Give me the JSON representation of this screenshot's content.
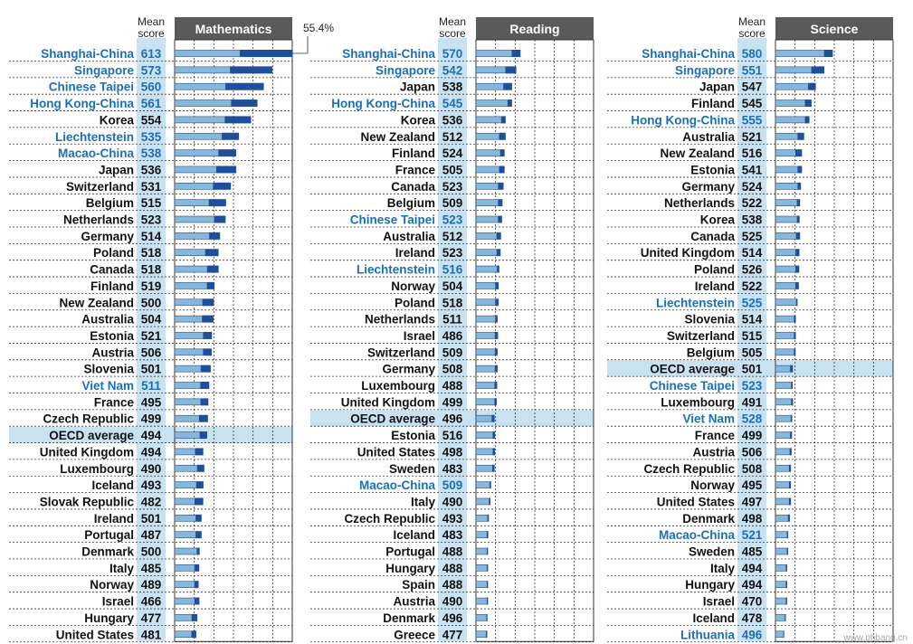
{
  "colors": {
    "partner_text": "#1a6fb5",
    "oecd_text": "#111111",
    "score_bg": "#c9e2f1",
    "oecd_band": "#c9e2f1",
    "header_bg": "#5a5a5a",
    "bar_light": "#86b7dc",
    "bar_dark": "#1f4f9a",
    "grid": "#333333"
  },
  "mean_score_label": [
    "Mean",
    "score"
  ],
  "watermark": "www.phbang.cn",
  "chart_data": [
    {
      "type": "bar",
      "title": "Mathematics",
      "annotation": "55.4%",
      "note": "Horizontal bars per country; light segment = share below reference level, dark segment = share at top levels. Values expressed as percentages.",
      "rows": [
        {
          "country": "Shanghai-China",
          "score": "613",
          "partner": true,
          "light": 30.8,
          "dark": 24.6
        },
        {
          "country": "Singapore",
          "score": "573",
          "partner": true,
          "light": 26.2,
          "dark": 19.8
        },
        {
          "country": "Chinese Taipei",
          "score": "560",
          "partner": true,
          "light": 24.0,
          "dark": 18.0
        },
        {
          "country": "Hong Kong-China",
          "score": "561",
          "partner": true,
          "light": 26.7,
          "dark": 12.3
        },
        {
          "country": "Korea",
          "score": "554",
          "partner": false,
          "light": 23.7,
          "dark": 12.3
        },
        {
          "country": "Liechtenstein",
          "score": "535",
          "partner": true,
          "light": 22.3,
          "dark": 8.0
        },
        {
          "country": "Macao-China",
          "score": "538",
          "partner": true,
          "light": 20.7,
          "dark": 8.3
        },
        {
          "country": "Japan",
          "score": "536",
          "partner": false,
          "light": 19.7,
          "dark": 9.3
        },
        {
          "country": "Switzerland",
          "score": "531",
          "partner": false,
          "light": 18.2,
          "dark": 8.3
        },
        {
          "country": "Belgium",
          "score": "515",
          "partner": false,
          "light": 16.2,
          "dark": 8.0
        },
        {
          "country": "Netherlands",
          "score": "523",
          "partner": false,
          "light": 18.7,
          "dark": 5.3
        },
        {
          "country": "Germany",
          "score": "514",
          "partner": false,
          "light": 16.4,
          "dark": 5.0
        },
        {
          "country": "Poland",
          "score": "518",
          "partner": false,
          "light": 14.5,
          "dark": 6.2
        },
        {
          "country": "Canada",
          "score": "518",
          "partner": false,
          "light": 15.4,
          "dark": 5.3
        },
        {
          "country": "Finland",
          "score": "519",
          "partner": false,
          "light": 15.3,
          "dark": 3.5
        },
        {
          "country": "New Zealand",
          "score": "500",
          "partner": false,
          "light": 13.2,
          "dark": 5.3
        },
        {
          "country": "Australia",
          "score": "504",
          "partner": false,
          "light": 13.0,
          "dark": 5.3
        },
        {
          "country": "Estonia",
          "score": "521",
          "partner": false,
          "light": 13.5,
          "dark": 4.1
        },
        {
          "country": "Austria",
          "score": "506",
          "partner": false,
          "light": 13.5,
          "dark": 4.0
        },
        {
          "country": "Slovenia",
          "score": "501",
          "partner": false,
          "light": 12.4,
          "dark": 4.6
        },
        {
          "country": "Viet Nam",
          "score": "511",
          "partner": true,
          "light": 12.2,
          "dark": 4.1
        },
        {
          "country": "France",
          "score": "495",
          "partner": false,
          "light": 12.3,
          "dark": 3.6
        },
        {
          "country": "Czech Republic",
          "score": "499",
          "partner": false,
          "light": 11.6,
          "dark": 4.1
        },
        {
          "country": "OECD average",
          "score": "494",
          "partner": false,
          "oecd": true,
          "light": 11.9,
          "dark": 3.4
        },
        {
          "country": "United Kingdom",
          "score": "494",
          "partner": false,
          "light": 9.7,
          "dark": 3.8
        },
        {
          "country": "Luxembourg",
          "score": "490",
          "partner": false,
          "light": 10.7,
          "dark": 3.3
        },
        {
          "country": "Iceland",
          "score": "493",
          "partner": false,
          "light": 10.3,
          "dark": 3.3
        },
        {
          "country": "Slovak Republic",
          "score": "482",
          "partner": false,
          "light": 9.5,
          "dark": 4.0
        },
        {
          "country": "Ireland",
          "score": "501",
          "partner": false,
          "light": 10.0,
          "dark": 2.7
        },
        {
          "country": "Portugal",
          "score": "487",
          "partner": false,
          "light": 10.0,
          "dark": 2.7
        },
        {
          "country": "Denmark",
          "score": "500",
          "partner": false,
          "light": 10.5,
          "dark": 1.3
        },
        {
          "country": "Italy",
          "score": "485",
          "partner": false,
          "light": 9.4,
          "dark": 2.2
        },
        {
          "country": "Norway",
          "score": "489",
          "partner": false,
          "light": 9.4,
          "dark": 1.9
        },
        {
          "country": "Israel",
          "score": "466",
          "partner": false,
          "light": 9.4,
          "dark": 2.3
        },
        {
          "country": "Hungary",
          "score": "477",
          "partner": false,
          "light": 8.1,
          "dark": 2.6
        },
        {
          "country": "United States",
          "score": "481",
          "partner": false,
          "light": 8.0,
          "dark": 2.2
        }
      ]
    },
    {
      "type": "bar",
      "title": "Reading",
      "rows": [
        {
          "country": "Shanghai-China",
          "score": "570",
          "partner": true,
          "light": 17.0,
          "dark": 4.0
        },
        {
          "country": "Singapore",
          "score": "542",
          "partner": true,
          "light": 14.0,
          "dark": 5.0
        },
        {
          "country": "Japan",
          "score": "538",
          "partner": false,
          "light": 13.0,
          "dark": 4.0
        },
        {
          "country": "Hong Kong-China",
          "score": "545",
          "partner": true,
          "light": 15.0,
          "dark": 2.0
        },
        {
          "country": "Korea",
          "score": "536",
          "partner": false,
          "light": 12.0,
          "dark": 2.0
        },
        {
          "country": "New Zealand",
          "score": "512",
          "partner": false,
          "light": 11.0,
          "dark": 3.0
        },
        {
          "country": "Finland",
          "score": "524",
          "partner": false,
          "light": 11.5,
          "dark": 2.0
        },
        {
          "country": "France",
          "score": "505",
          "partner": false,
          "light": 11.0,
          "dark": 2.5
        },
        {
          "country": "Canada",
          "score": "523",
          "partner": false,
          "light": 10.5,
          "dark": 2.5
        },
        {
          "country": "Belgium",
          "score": "509",
          "partner": false,
          "light": 10.5,
          "dark": 2.0
        },
        {
          "country": "Chinese Taipei",
          "score": "523",
          "partner": true,
          "light": 10.5,
          "dark": 1.8
        },
        {
          "country": "Australia",
          "score": "512",
          "partner": false,
          "light": 9.8,
          "dark": 2.0
        },
        {
          "country": "Ireland",
          "score": "523",
          "partner": false,
          "light": 9.8,
          "dark": 1.8
        },
        {
          "country": "Liechtenstein",
          "score": "516",
          "partner": true,
          "light": 10.0,
          "dark": 1.0
        },
        {
          "country": "Norway",
          "score": "504",
          "partner": false,
          "light": 9.2,
          "dark": 1.5
        },
        {
          "country": "Poland",
          "score": "518",
          "partner": false,
          "light": 9.2,
          "dark": 1.5
        },
        {
          "country": "Netherlands",
          "score": "511",
          "partner": false,
          "light": 9.2,
          "dark": 1.0
        },
        {
          "country": "Israel",
          "score": "486",
          "partner": false,
          "light": 9.0,
          "dark": 1.4
        },
        {
          "country": "Switzerland",
          "score": "509",
          "partner": false,
          "light": 9.0,
          "dark": 1.2
        },
        {
          "country": "Germany",
          "score": "508",
          "partner": false,
          "light": 9.0,
          "dark": 1.2
        },
        {
          "country": "Luxembourg",
          "score": "488",
          "partner": false,
          "light": 8.8,
          "dark": 1.2
        },
        {
          "country": "United Kingdom",
          "score": "499",
          "partner": false,
          "light": 8.8,
          "dark": 1.0
        },
        {
          "country": "OECD average",
          "score": "496",
          "partner": false,
          "oecd": true,
          "light": 7.5,
          "dark": 1.3
        },
        {
          "country": "Estonia",
          "score": "516",
          "partner": false,
          "light": 8.0,
          "dark": 1.0
        },
        {
          "country": "United States",
          "score": "498",
          "partner": false,
          "light": 8.0,
          "dark": 1.0
        },
        {
          "country": "Sweden",
          "score": "483",
          "partner": false,
          "light": 7.8,
          "dark": 1.0
        },
        {
          "country": "Macao-China",
          "score": "509",
          "partner": true,
          "light": 6.5,
          "dark": 0.6
        },
        {
          "country": "Italy",
          "score": "490",
          "partner": false,
          "light": 6.2,
          "dark": 0.6
        },
        {
          "country": "Czech Republic",
          "score": "493",
          "partner": false,
          "light": 5.5,
          "dark": 0.6
        },
        {
          "country": "Iceland",
          "score": "483",
          "partner": false,
          "light": 5.2,
          "dark": 0.6
        },
        {
          "country": "Portugal",
          "score": "488",
          "partner": false,
          "light": 5.2,
          "dark": 0.5
        },
        {
          "country": "Hungary",
          "score": "488",
          "partner": false,
          "light": 5.2,
          "dark": 0.5
        },
        {
          "country": "Spain",
          "score": "488",
          "partner": false,
          "light": 5.2,
          "dark": 0.5
        },
        {
          "country": "Austria",
          "score": "490",
          "partner": false,
          "light": 5.2,
          "dark": 0.5
        },
        {
          "country": "Denmark",
          "score": "496",
          "partner": false,
          "light": 5.0,
          "dark": 0.4
        },
        {
          "country": "Greece",
          "score": "477",
          "partner": false,
          "light": 4.8,
          "dark": 0.5
        }
      ]
    },
    {
      "type": "bar",
      "title": "Science",
      "rows": [
        {
          "country": "Shanghai-China",
          "score": "580",
          "partner": true,
          "light": 23.0,
          "dark": 4.0
        },
        {
          "country": "Singapore",
          "score": "551",
          "partner": true,
          "light": 17.0,
          "dark": 6.0
        },
        {
          "country": "Japan",
          "score": "547",
          "partner": false,
          "light": 15.5,
          "dark": 3.5
        },
        {
          "country": "Finland",
          "score": "545",
          "partner": false,
          "light": 14.0,
          "dark": 3.0
        },
        {
          "country": "Hong Kong-China",
          "score": "555",
          "partner": true,
          "light": 14.0,
          "dark": 2.0
        },
        {
          "country": "Australia",
          "score": "521",
          "partner": false,
          "light": 10.5,
          "dark": 3.0
        },
        {
          "country": "New Zealand",
          "score": "516",
          "partner": false,
          "light": 9.5,
          "dark": 3.0
        },
        {
          "country": "Estonia",
          "score": "541",
          "partner": false,
          "light": 10.5,
          "dark": 2.0
        },
        {
          "country": "Germany",
          "score": "524",
          "partner": false,
          "light": 10.5,
          "dark": 1.5
        },
        {
          "country": "Netherlands",
          "score": "522",
          "partner": false,
          "light": 10.2,
          "dark": 1.4
        },
        {
          "country": "Korea",
          "score": "538",
          "partner": false,
          "light": 10.2,
          "dark": 1.2
        },
        {
          "country": "Canada",
          "score": "525",
          "partner": false,
          "light": 9.8,
          "dark": 1.8
        },
        {
          "country": "United Kingdom",
          "score": "514",
          "partner": false,
          "light": 9.5,
          "dark": 1.8
        },
        {
          "country": "Poland",
          "score": "526",
          "partner": false,
          "light": 9.5,
          "dark": 1.7
        },
        {
          "country": "Ireland",
          "score": "522",
          "partner": false,
          "light": 9.5,
          "dark": 1.5
        },
        {
          "country": "Liechtenstein",
          "score": "525",
          "partner": true,
          "light": 9.8,
          "dark": 0.6
        },
        {
          "country": "Slovenia",
          "score": "514",
          "partner": false,
          "light": 8.8,
          "dark": 0.8
        },
        {
          "country": "Switzerland",
          "score": "515",
          "partner": false,
          "light": 8.8,
          "dark": 0.8
        },
        {
          "country": "Belgium",
          "score": "505",
          "partner": false,
          "light": 8.8,
          "dark": 0.7
        },
        {
          "country": "OECD average",
          "score": "501",
          "partner": false,
          "oecd": true,
          "light": 7.0,
          "dark": 1.2
        },
        {
          "country": "Chinese Taipei",
          "score": "523",
          "partner": true,
          "light": 7.5,
          "dark": 0.6
        },
        {
          "country": "Luxembourg",
          "score": "491",
          "partner": false,
          "light": 7.5,
          "dark": 0.8
        },
        {
          "country": "Viet Nam",
          "score": "528",
          "partner": true,
          "light": 7.3,
          "dark": 0.6
        },
        {
          "country": "France",
          "score": "499",
          "partner": false,
          "light": 7.0,
          "dark": 0.8
        },
        {
          "country": "Austria",
          "score": "506",
          "partner": false,
          "light": 6.8,
          "dark": 0.8
        },
        {
          "country": "Czech Republic",
          "score": "508",
          "partner": false,
          "light": 6.5,
          "dark": 0.8
        },
        {
          "country": "Norway",
          "score": "495",
          "partner": false,
          "light": 6.5,
          "dark": 0.8
        },
        {
          "country": "United States",
          "score": "497",
          "partner": false,
          "light": 6.5,
          "dark": 0.8
        },
        {
          "country": "Denmark",
          "score": "498",
          "partner": false,
          "light": 6.0,
          "dark": 0.8
        },
        {
          "country": "Macao-China",
          "score": "521",
          "partner": true,
          "light": 5.5,
          "dark": 0.5
        },
        {
          "country": "Sweden",
          "score": "485",
          "partner": false,
          "light": 5.5,
          "dark": 0.5
        },
        {
          "country": "Italy",
          "score": "494",
          "partner": false,
          "light": 5.0,
          "dark": 0.5
        },
        {
          "country": "Hungary",
          "score": "494",
          "partner": false,
          "light": 5.0,
          "dark": 0.5
        },
        {
          "country": "Israel",
          "score": "470",
          "partner": false,
          "light": 5.0,
          "dark": 0.5
        },
        {
          "country": "Iceland",
          "score": "478",
          "partner": false,
          "light": 4.5,
          "dark": 0.4
        },
        {
          "country": "Lithuania",
          "score": "496",
          "partner": true,
          "light": 3.8,
          "dark": 0.3
        }
      ]
    }
  ]
}
